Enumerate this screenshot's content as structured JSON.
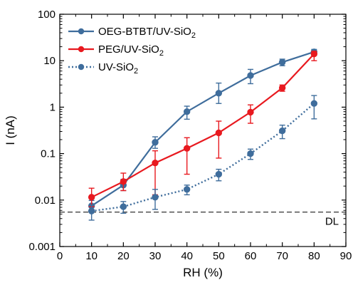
{
  "chart_data": {
    "type": "line",
    "xlabel": "RH (%)",
    "ylabel": "I (nA)",
    "xlim": [
      0,
      90
    ],
    "ylim": [
      0.001,
      100
    ],
    "yscale": "log",
    "xticks": [
      0,
      10,
      20,
      30,
      40,
      50,
      60,
      70,
      80,
      90
    ],
    "yticks": [
      {
        "value": 0.001,
        "label": "0.001"
      },
      {
        "value": 0.01,
        "label": "0.01"
      },
      {
        "value": 0.1,
        "label": "0.1"
      },
      {
        "value": 1,
        "label": "1"
      },
      {
        "value": 10,
        "label": "10"
      },
      {
        "value": 100,
        "label": "100"
      }
    ],
    "legend_position": "top-left",
    "grid": false,
    "series": [
      {
        "name_main": "OEG-BTBT/UV-SiO",
        "name_sub": "2",
        "color": "#3f6d9c",
        "line_style": "solid",
        "x": [
          10,
          20,
          30,
          40,
          50,
          60,
          70,
          80
        ],
        "y": [
          0.0075,
          0.021,
          0.175,
          0.8,
          2.0,
          4.8,
          9.3,
          15.5
        ],
        "err_low": [
          0.0058,
          0.016,
          0.13,
          0.55,
          1.2,
          3.2,
          7.8,
          13
        ],
        "err_high": [
          0.0098,
          0.028,
          0.23,
          1.05,
          3.3,
          6.5,
          10.8,
          17.5
        ]
      },
      {
        "name_main": "PEG/UV-SiO",
        "name_sub": "2",
        "color": "#e8191f",
        "line_style": "solid",
        "x": [
          10,
          20,
          30,
          40,
          50,
          60,
          70,
          80
        ],
        "y": [
          0.0115,
          0.025,
          0.063,
          0.13,
          0.28,
          0.78,
          2.6,
          14
        ],
        "err_low": [
          0.0072,
          0.016,
          0.013,
          0.036,
          0.08,
          0.45,
          2.2,
          10
        ],
        "err_high": [
          0.018,
          0.038,
          0.115,
          0.22,
          0.5,
          1.12,
          3.0,
          16
        ]
      },
      {
        "name_main": "UV-SiO",
        "name_sub": "2",
        "color": "#3f6d9c",
        "line_style": "dotted",
        "x": [
          10,
          20,
          30,
          40,
          50,
          60,
          70,
          80
        ],
        "y": [
          0.0058,
          0.0072,
          0.0115,
          0.017,
          0.036,
          0.1,
          0.31,
          1.2
        ],
        "err_low": [
          0.0037,
          0.0052,
          0.0063,
          0.013,
          0.026,
          0.075,
          0.21,
          0.56
        ],
        "err_high": [
          0.0078,
          0.0093,
          0.017,
          0.021,
          0.046,
          0.125,
          0.41,
          1.78
        ]
      }
    ],
    "detection_limit": {
      "value": 0.0055,
      "label": "DL",
      "line_style": "dashed"
    }
  }
}
